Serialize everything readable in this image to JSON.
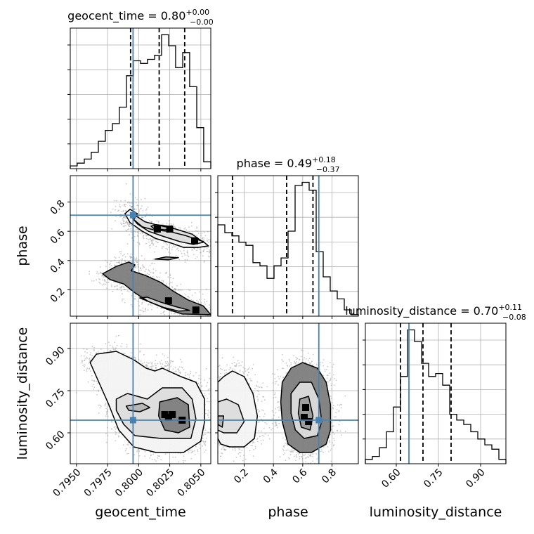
{
  "chart_data": {
    "type": "corner",
    "parameters": [
      "geocent_time",
      "phase",
      "luminosity_distance"
    ],
    "labels": {
      "geocent_time": "geocent_time",
      "phase": "phase",
      "luminosity_distance": "luminosity_distance"
    },
    "titles": {
      "geocent_time": {
        "name": "geocent_time",
        "median": "0.80",
        "plus": "+0.00",
        "minus": "−0.00"
      },
      "phase": {
        "name": "phase",
        "median": "0.49",
        "plus": "+0.18",
        "minus": "−0.37"
      },
      "luminosity_distance": {
        "name": "luminosity_distance",
        "median": "0.70",
        "plus": "+0.11",
        "minus": "−0.08"
      }
    },
    "ranges": {
      "geocent_time": [
        0.7945,
        0.8058
      ],
      "phase": [
        0.02,
        0.98
      ],
      "luminosity_distance": [
        0.49,
        0.99
      ]
    },
    "ticks": {
      "geocent_time": [
        0.795,
        0.7975,
        0.8,
        0.8025,
        0.805
      ],
      "phase": [
        0.2,
        0.4,
        0.6,
        0.8
      ],
      "luminosity_distance": [
        0.6,
        0.75,
        0.9
      ]
    },
    "tick_labels": {
      "geocent_time": [
        "0.7950",
        "0.7975",
        "0.8000",
        "0.8025",
        "0.8050"
      ],
      "phase": [
        "0.2",
        "0.4",
        "0.6",
        "0.8"
      ],
      "luminosity_distance": [
        "0.60",
        "0.75",
        "0.90"
      ]
    },
    "truths": {
      "geocent_time": 0.79955,
      "phase": 0.71,
      "luminosity_distance": 0.645
    },
    "quantiles": {
      "geocent_time": [
        0.79935,
        0.80165,
        0.8037
      ],
      "phase": [
        0.12,
        0.49,
        0.67
      ],
      "luminosity_distance": [
        0.615,
        0.695,
        0.795
      ]
    },
    "histograms": {
      "geocent_time": {
        "edges": [
          0.7945,
          0.79506,
          0.79563,
          0.79619,
          0.79676,
          0.79732,
          0.79789,
          0.79845,
          0.79902,
          0.79958,
          0.80015,
          0.80071,
          0.80128,
          0.80184,
          0.80241,
          0.80297,
          0.80354,
          0.8041,
          0.80467,
          0.80523,
          0.8058
        ],
        "counts": [
          2,
          4,
          7,
          12,
          20,
          28,
          33,
          45,
          68,
          79,
          77,
          80,
          83,
          98,
          90,
          74,
          85,
          60,
          30,
          5
        ]
      },
      "phase": {
        "edges": [
          0.02,
          0.068,
          0.116,
          0.164,
          0.212,
          0.26,
          0.308,
          0.356,
          0.404,
          0.452,
          0.5,
          0.548,
          0.596,
          0.644,
          0.692,
          0.74,
          0.788,
          0.836,
          0.884,
          0.932,
          0.98
        ],
        "counts": [
          58,
          53,
          51,
          47,
          45,
          34,
          32,
          24,
          32,
          37,
          54,
          83,
          85,
          80,
          41,
          25,
          16,
          11,
          4,
          1
        ]
      },
      "luminosity_distance": {
        "edges": [
          0.49,
          0.515,
          0.54,
          0.565,
          0.59,
          0.615,
          0.64,
          0.665,
          0.69,
          0.715,
          0.74,
          0.765,
          0.79,
          0.815,
          0.84,
          0.865,
          0.89,
          0.915,
          0.94,
          0.965,
          0.99
        ],
        "counts": [
          3,
          5,
          11,
          22,
          39,
          60,
          92,
          84,
          69,
          60,
          62,
          54,
          34,
          30,
          27,
          22,
          17,
          13,
          10,
          3
        ]
      }
    },
    "pairs": [
      {
        "x": "geocent_time",
        "y": "phase",
        "contours": [
          [
            [
              0.7996,
              0.68
            ],
            [
              0.8003,
              0.63
            ],
            [
              0.8012,
              0.61
            ],
            [
              0.8024,
              0.6
            ],
            [
              0.8038,
              0.57
            ],
            [
              0.8052,
              0.53
            ],
            [
              0.8056,
              0.5
            ],
            [
              0.8048,
              0.49
            ],
            [
              0.8036,
              0.49
            ],
            [
              0.8026,
              0.52
            ],
            [
              0.8014,
              0.55
            ],
            [
              0.8003,
              0.6
            ],
            [
              0.7993,
              0.66
            ],
            [
              0.7989,
              0.72
            ],
            [
              0.7993,
              0.75
            ],
            [
              0.7999,
              0.72
            ]
          ],
          [
            [
              0.7997,
              0.71
            ],
            [
              0.8005,
              0.665
            ],
            [
              0.8016,
              0.64
            ],
            [
              0.8028,
              0.62
            ],
            [
              0.8043,
              0.58
            ],
            [
              0.8052,
              0.525
            ],
            [
              0.8044,
              0.51
            ],
            [
              0.8033,
              0.53
            ],
            [
              0.802,
              0.565
            ],
            [
              0.8008,
              0.6
            ],
            [
              0.7999,
              0.65
            ],
            [
              0.7994,
              0.7
            ]
          ],
          [
            [
              0.8014,
              0.645
            ],
            [
              0.8024,
              0.635
            ],
            [
              0.8028,
              0.62
            ],
            [
              0.8021,
              0.61
            ],
            [
              0.8012,
              0.62
            ],
            [
              0.801,
              0.635
            ]
          ],
          [
            [
              0.7971,
              0.31
            ],
            [
              0.7982,
              0.36
            ],
            [
              0.7992,
              0.39
            ],
            [
              0.7997,
              0.37
            ],
            [
              0.7994,
              0.33
            ],
            [
              0.8005,
              0.3
            ],
            [
              0.8018,
              0.25
            ],
            [
              0.8028,
              0.19
            ],
            [
              0.804,
              0.13
            ],
            [
              0.8052,
              0.09
            ],
            [
              0.8058,
              0.03
            ],
            [
              0.8035,
              0.035
            ],
            [
              0.8022,
              0.07
            ],
            [
              0.8008,
              0.12
            ],
            [
              0.7997,
              0.18
            ],
            [
              0.7988,
              0.24
            ],
            [
              0.7977,
              0.27
            ]
          ],
          [
            [
              0.8007,
              0.15
            ],
            [
              0.8018,
              0.115
            ],
            [
              0.803,
              0.085
            ],
            [
              0.8041,
              0.06
            ],
            [
              0.8032,
              0.055
            ],
            [
              0.802,
              0.08
            ],
            [
              0.8008,
              0.12
            ],
            [
              0.8001,
              0.145
            ]
          ],
          [
            [
              0.8013,
              0.41
            ],
            [
              0.8022,
              0.425
            ],
            [
              0.8032,
              0.42
            ],
            [
              0.8024,
              0.405
            ]
          ]
        ],
        "dense": [
          [
            0.8015,
            0.615
          ],
          [
            0.8025,
            0.615
          ],
          [
            0.8045,
            0.535
          ],
          [
            0.8024,
            0.125
          ],
          [
            0.8046,
            0.062
          ]
        ]
      },
      {
        "x": "geocent_time",
        "y": "luminosity_distance",
        "contours": [
          [
            [
              0.7966,
              0.88
            ],
            [
              0.7982,
              0.89
            ],
            [
              0.7996,
              0.86
            ],
            [
              0.8006,
              0.83
            ],
            [
              0.8013,
              0.82
            ],
            [
              0.8019,
              0.83
            ],
            [
              0.8024,
              0.82
            ],
            [
              0.8034,
              0.8
            ],
            [
              0.8046,
              0.78
            ],
            [
              0.8053,
              0.72
            ],
            [
              0.8053,
              0.64
            ],
            [
              0.805,
              0.57
            ],
            [
              0.8036,
              0.53
            ],
            [
              0.8014,
              0.53
            ],
            [
              0.7996,
              0.55
            ],
            [
              0.7984,
              0.61
            ],
            [
              0.7976,
              0.7
            ],
            [
              0.7967,
              0.79
            ],
            [
              0.7961,
              0.85
            ]
          ],
          [
            [
              0.7982,
              0.72
            ],
            [
              0.7991,
              0.74
            ],
            [
              0.8007,
              0.72
            ],
            [
              0.8019,
              0.76
            ],
            [
              0.8035,
              0.76
            ],
            [
              0.8043,
              0.72
            ],
            [
              0.8046,
              0.65
            ],
            [
              0.8042,
              0.58
            ],
            [
              0.8018,
              0.58
            ],
            [
              0.7997,
              0.59
            ],
            [
              0.7988,
              0.63
            ],
            [
              0.7982,
              0.68
            ]
          ],
          [
            [
              0.799,
              0.695
            ],
            [
              0.8003,
              0.705
            ],
            [
              0.8009,
              0.69
            ],
            [
              0.8001,
              0.675
            ],
            [
              0.7992,
              0.68
            ]
          ],
          [
            [
              0.8017,
              0.71
            ],
            [
              0.8031,
              0.725
            ],
            [
              0.804,
              0.7
            ],
            [
              0.8041,
              0.62
            ],
            [
              0.8032,
              0.6
            ],
            [
              0.8021,
              0.61
            ],
            [
              0.8016,
              0.66
            ]
          ]
        ],
        "dense": [
          [
            0.8021,
            0.665
          ],
          [
            0.8027,
            0.665
          ],
          [
            0.8024,
            0.655
          ],
          [
            0.8035,
            0.645
          ]
        ]
      },
      {
        "x": "phase",
        "y": "luminosity_distance",
        "contours": [
          [
            [
              0.02,
              0.78
            ],
            [
              0.06,
              0.8
            ],
            [
              0.12,
              0.82
            ],
            [
              0.2,
              0.8
            ],
            [
              0.26,
              0.74
            ],
            [
              0.29,
              0.66
            ],
            [
              0.27,
              0.58
            ],
            [
              0.2,
              0.55
            ],
            [
              0.1,
              0.55
            ],
            [
              0.04,
              0.56
            ],
            [
              0.02,
              0.58
            ]
          ],
          [
            [
              0.02,
              0.71
            ],
            [
              0.08,
              0.72
            ],
            [
              0.16,
              0.7
            ],
            [
              0.2,
              0.64
            ],
            [
              0.15,
              0.6
            ],
            [
              0.06,
              0.6
            ],
            [
              0.02,
              0.61
            ]
          ],
          [
            [
              0.02,
              0.66
            ],
            [
              0.06,
              0.66
            ],
            [
              0.05,
              0.62
            ],
            [
              0.02,
              0.63
            ]
          ],
          [
            [
              0.46,
              0.78
            ],
            [
              0.52,
              0.83
            ],
            [
              0.6,
              0.85
            ],
            [
              0.7,
              0.83
            ],
            [
              0.76,
              0.78
            ],
            [
              0.79,
              0.7
            ],
            [
              0.79,
              0.61
            ],
            [
              0.76,
              0.56
            ],
            [
              0.66,
              0.53
            ],
            [
              0.58,
              0.53
            ],
            [
              0.5,
              0.56
            ],
            [
              0.46,
              0.64
            ],
            [
              0.45,
              0.71
            ]
          ],
          [
            [
              0.52,
              0.74
            ],
            [
              0.58,
              0.78
            ],
            [
              0.66,
              0.78
            ],
            [
              0.71,
              0.72
            ],
            [
              0.73,
              0.64
            ],
            [
              0.7,
              0.59
            ],
            [
              0.61,
              0.58
            ],
            [
              0.55,
              0.61
            ],
            [
              0.52,
              0.67
            ]
          ],
          [
            [
              0.58,
              0.72
            ],
            [
              0.64,
              0.73
            ],
            [
              0.67,
              0.66
            ],
            [
              0.65,
              0.61
            ],
            [
              0.59,
              0.62
            ],
            [
              0.57,
              0.67
            ]
          ]
        ],
        "dense": [
          [
            0.62,
            0.69
          ],
          [
            0.61,
            0.655
          ],
          [
            0.64,
            0.64
          ]
        ]
      }
    ],
    "grid": true,
    "legend": "none"
  }
}
